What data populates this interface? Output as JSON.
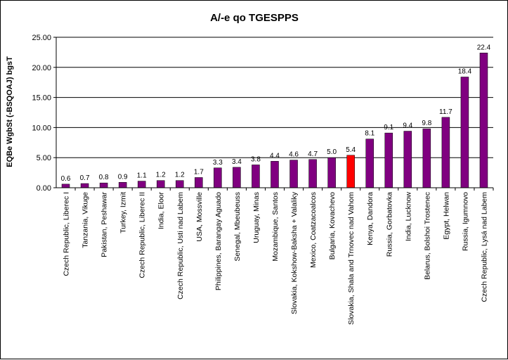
{
  "chart_data": {
    "type": "bar",
    "title": "A/-e qo TGESPPS",
    "xlabel": "",
    "ylabel": "EQBe WgbSt (-BSQOAJ) bgsT",
    "ylim": [
      0,
      25
    ],
    "yticks": [
      "0.00",
      "5.00",
      "10.00",
      "15.00",
      "20.00",
      "25.00"
    ],
    "grid": true,
    "categories": [
      "Czech Republic, Liberec I",
      "Tanzania, Vikuge",
      "Pakistan, Peshawar",
      "Turkey, Izmit",
      "Czech Republic, Liberec II",
      "India, Eloor",
      "Czech Republic, Usti nad Labem",
      "USA, Mossville",
      "Philippines, Barangay Aguado",
      "Senegal, Mbeubeuss",
      "Uruguay, Minas",
      "Mozambique, Santos",
      "Slovakia, Kokshow-Baksha + Valaliky",
      "Mexico, Coatzacoalcos",
      "Bulgaria, Kovachevo",
      "Slovakia, Shala and Trnovec nad Vahom",
      "Kenya, Dandora",
      "Russia, Gorbatovka",
      "India, Lucknow",
      "Belarus, Bolshoi Trostenec",
      "Egypt, Helwan",
      "Russia, Igumnovo",
      "Czech Republic, Lysá nad Labem"
    ],
    "values": [
      0.6,
      0.7,
      0.8,
      0.9,
      1.1,
      1.2,
      1.2,
      1.7,
      3.3,
      3.4,
      3.8,
      4.4,
      4.6,
      4.7,
      5.0,
      5.4,
      8.1,
      9.1,
      9.4,
      9.8,
      11.7,
      18.4,
      22.4
    ],
    "value_labels": [
      "0.6",
      "0.7",
      "0.8",
      "0.9",
      "1.1",
      "1.2",
      "1.2",
      "1.7",
      "3.3",
      "3.4",
      "3.8",
      "4.4",
      "4.6",
      "4.7",
      "5.0",
      "5.4",
      "8.1",
      "9.1",
      "9.4",
      "9.8",
      "11.7",
      "18.4",
      "22.4"
    ],
    "highlight_index": 15,
    "colors": {
      "bar": "#800080",
      "highlight": "#ff0000",
      "grid": "#000000",
      "text": "#000000"
    }
  }
}
